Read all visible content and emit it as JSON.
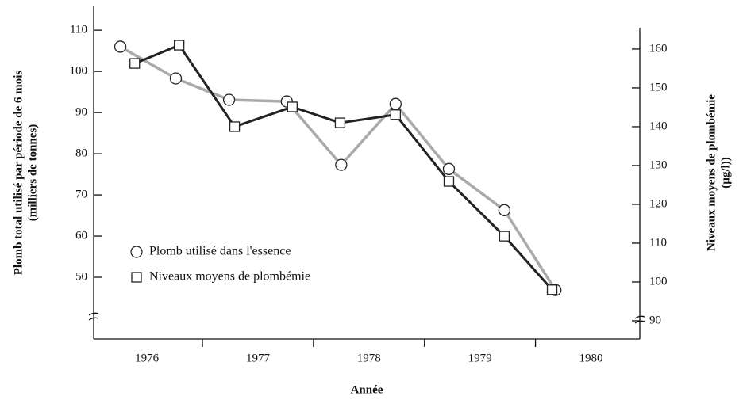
{
  "chart_data": {
    "type": "line",
    "ylabel": [
      "Plomb total utilisé par période de 6 mois",
      "(milliers de tonnes)"
    ],
    "y2label": [
      "Niveaux  moyens de plombémie",
      "(µg/l))"
    ],
    "xlabel": "Année",
    "xlim": [
      1975.52,
      1980.44
    ],
    "xticks": [
      1976,
      1977,
      1978,
      1979,
      1980
    ],
    "ylim": [
      35,
      115.8
    ],
    "yticks": [
      50,
      60,
      70,
      80,
      90,
      100,
      110
    ],
    "y2lim": [
      85.3,
      165.5
    ],
    "y2ticks": [
      90,
      100,
      110,
      120,
      130,
      140,
      150,
      160
    ],
    "series": [
      {
        "name": "Plomb utilisé dans l'essence",
        "color": "#aaaaaa",
        "marker": "circle",
        "x": [
          1975.76,
          1976.26,
          1976.74,
          1977.26,
          1977.75,
          1978.24,
          1978.72,
          1979.22,
          1979.68
        ],
        "values": [
          106,
          98.3,
          93.1,
          92.7,
          77.3,
          92.1,
          76.3,
          66.3,
          46.9
        ]
      },
      {
        "name": "Niveaux moyens de plombémie",
        "color": "#222222",
        "marker": "square",
        "axis": "y2",
        "x": [
          1975.89,
          1976.29,
          1976.79,
          1977.31,
          1977.74,
          1978.24,
          1978.72,
          1979.22,
          1979.65
        ],
        "values": [
          156.3,
          161.0,
          140.0,
          145.1,
          141.0,
          143.1,
          125.9,
          111.8,
          98.0
        ]
      }
    ]
  }
}
